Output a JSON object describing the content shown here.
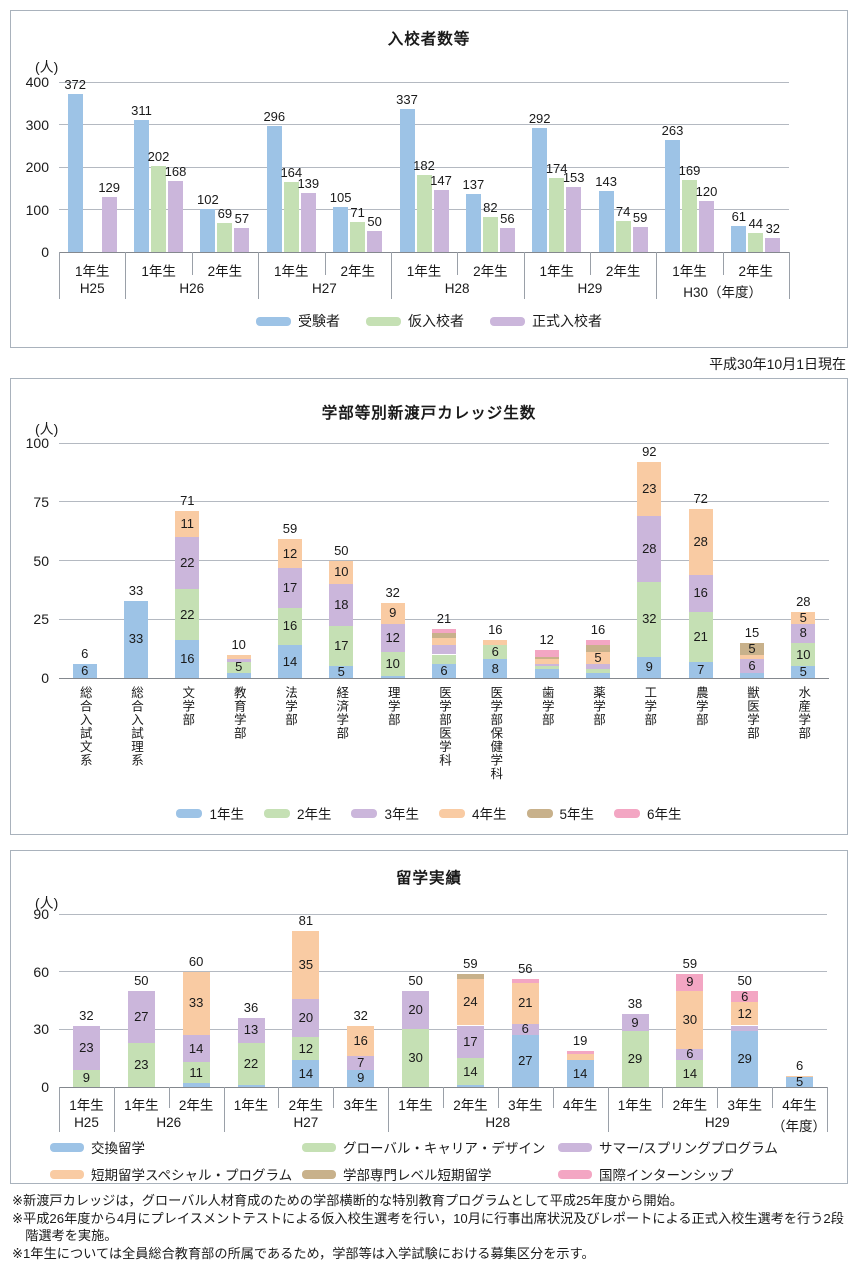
{
  "date_note": "平成30年10月1日現在",
  "footnotes": [
    "※新渡戸カレッジは，グローバル人材育成のための学部横断的な特別教育プログラムとして平成25年度から開始。",
    "※平成26年度から4月にプレイスメントテストによる仮入校生選考を行い，10月に行事出席状況及びレポートによる正式入校生選考を行う2段階選考を実施。",
    "※1年生については全員総合教育部の所属であるため，学部等は入学試験における募集区分を示す。"
  ],
  "chart_data": [
    {
      "type": "bar",
      "title": "入校者数等",
      "unit": "(人)",
      "ylim": [
        0,
        400
      ],
      "yticks": [
        0,
        100,
        200,
        300,
        400
      ],
      "grid": true,
      "legend_position": "bottom",
      "series": [
        {
          "name": "受験者",
          "color": "#9DC3E6"
        },
        {
          "name": "仮入校者",
          "color": "#C5E0B4"
        },
        {
          "name": "正式入校者",
          "color": "#CBB6DB"
        }
      ],
      "groups": [
        {
          "label": "1年生",
          "values": [
            372,
            null,
            129
          ]
        },
        {
          "label": "1年生",
          "values": [
            311,
            202,
            168
          ]
        },
        {
          "label": "2年生",
          "values": [
            102,
            69,
            57
          ]
        },
        {
          "label": "1年生",
          "values": [
            296,
            164,
            139
          ]
        },
        {
          "label": "2年生",
          "values": [
            105,
            71,
            50
          ]
        },
        {
          "label": "1年生",
          "values": [
            337,
            182,
            147
          ]
        },
        {
          "label": "2年生",
          "values": [
            137,
            82,
            56
          ]
        },
        {
          "label": "1年生",
          "values": [
            292,
            174,
            153
          ]
        },
        {
          "label": "2年生",
          "values": [
            143,
            74,
            59
          ]
        },
        {
          "label": "1年生",
          "values": [
            263,
            169,
            120
          ]
        },
        {
          "label": "2年生",
          "values": [
            61,
            44,
            32
          ]
        }
      ],
      "year_groups": [
        {
          "label": "H25",
          "span": 1
        },
        {
          "label": "H26",
          "span": 2
        },
        {
          "label": "H27",
          "span": 2
        },
        {
          "label": "H28",
          "span": 2
        },
        {
          "label": "H29",
          "span": 2
        },
        {
          "label": "H30（年度）",
          "span": 2
        }
      ]
    },
    {
      "type": "stacked-bar",
      "title": "学部等別新渡戸カレッジ生数",
      "unit": "(人)",
      "ylim": [
        0,
        100
      ],
      "yticks": [
        0,
        25,
        50,
        75,
        100
      ],
      "grid": true,
      "legend_position": "bottom",
      "label_min_value": 5,
      "series": [
        {
          "name": "1年生",
          "color": "#9DC3E6"
        },
        {
          "name": "2年生",
          "color": "#C5E0B4"
        },
        {
          "name": "3年生",
          "color": "#CBB6DB"
        },
        {
          "name": "4年生",
          "color": "#F9CBA3"
        },
        {
          "name": "5年生",
          "color": "#C8B18B"
        },
        {
          "name": "6年生",
          "color": "#F3A6C3"
        }
      ],
      "categories": [
        "総合入試文系",
        "総合入試理系",
        "文学部",
        "教育学部",
        "法学部",
        "経済学部",
        "理学部",
        "医学部医学科",
        "医学部保健学科",
        "歯学部",
        "薬学部",
        "工学部",
        "農学部",
        "獣医学部",
        "水産学部"
      ],
      "values": [
        [
          6,
          0,
          0,
          0,
          0,
          0
        ],
        [
          33,
          0,
          0,
          0,
          0,
          0
        ],
        [
          16,
          22,
          22,
          11,
          0,
          0
        ],
        [
          2,
          5,
          1,
          2,
          0,
          0
        ],
        [
          14,
          16,
          17,
          12,
          0,
          0
        ],
        [
          5,
          17,
          18,
          10,
          0,
          0
        ],
        [
          1,
          10,
          12,
          9,
          0,
          0
        ],
        [
          6,
          4,
          4,
          3,
          2,
          2
        ],
        [
          8,
          6,
          0,
          2,
          0,
          0
        ],
        [
          4,
          1,
          1,
          2,
          1,
          3
        ],
        [
          2,
          2,
          2,
          5,
          3,
          2
        ],
        [
          9,
          32,
          28,
          23,
          0,
          0
        ],
        [
          7,
          21,
          16,
          28,
          0,
          0
        ],
        [
          2,
          0,
          6,
          2,
          5,
          0
        ],
        [
          5,
          10,
          8,
          5,
          0,
          0
        ]
      ],
      "totals": [
        6,
        33,
        71,
        10,
        59,
        50,
        32,
        21,
        16,
        12,
        16,
        92,
        72,
        15,
        28
      ]
    },
    {
      "type": "stacked-bar",
      "title": "留学実績",
      "unit": "(人)",
      "ylim": [
        0,
        90
      ],
      "yticks": [
        0,
        30,
        60,
        90
      ],
      "grid": true,
      "legend_position": "bottom",
      "label_min_value": 5,
      "axis_suffix": "（年度）",
      "series": [
        {
          "name": "交換留学",
          "color": "#9DC3E6"
        },
        {
          "name": "グローバル・キャリア・デザイン",
          "color": "#C5E0B4"
        },
        {
          "name": "サマー/スプリングプログラム",
          "color": "#CBB6DB"
        },
        {
          "name": "短期留学スペシャル・プログラム",
          "color": "#F9CBA3"
        },
        {
          "name": "学部専門レベル短期留学",
          "color": "#C8B18B"
        },
        {
          "name": "国際インターンシップ",
          "color": "#F3A6C3"
        }
      ],
      "groups": [
        {
          "label": "1年生",
          "values": [
            0,
            9,
            23,
            0,
            0,
            0
          ],
          "total": 32
        },
        {
          "label": "1年生",
          "values": [
            0,
            23,
            27,
            0,
            0,
            0
          ],
          "total": 50
        },
        {
          "label": "2年生",
          "values": [
            2,
            11,
            14,
            33,
            0,
            0
          ],
          "total": 60
        },
        {
          "label": "1年生",
          "values": [
            1,
            22,
            13,
            0,
            0,
            0
          ],
          "total": 36
        },
        {
          "label": "2年生",
          "values": [
            14,
            12,
            20,
            35,
            0,
            0
          ],
          "total": 81
        },
        {
          "label": "3年生",
          "values": [
            9,
            0,
            7,
            16,
            0,
            0
          ],
          "total": 32
        },
        {
          "label": "1年生",
          "values": [
            0,
            30,
            20,
            0,
            0,
            0
          ],
          "total": 50
        },
        {
          "label": "2年生",
          "values": [
            1,
            14,
            17,
            24,
            3,
            0
          ],
          "total": 59
        },
        {
          "label": "3年生",
          "values": [
            27,
            0,
            6,
            21,
            0,
            2
          ],
          "total": 56
        },
        {
          "label": "4年生",
          "values": [
            14,
            0,
            0,
            3,
            0,
            2
          ],
          "total": 19
        },
        {
          "label": "1年生",
          "values": [
            0,
            29,
            9,
            0,
            0,
            0
          ],
          "total": 38
        },
        {
          "label": "2年生",
          "values": [
            0,
            14,
            6,
            30,
            0,
            9
          ],
          "total": 59
        },
        {
          "label": "3年生",
          "values": [
            29,
            0,
            3,
            12,
            0,
            6
          ],
          "total": 50
        },
        {
          "label": "4年生",
          "values": [
            5,
            0,
            0,
            1,
            0,
            0
          ],
          "total": 6
        }
      ],
      "year_groups": [
        {
          "label": "H25",
          "span": 1
        },
        {
          "label": "H26",
          "span": 2
        },
        {
          "label": "H27",
          "span": 3
        },
        {
          "label": "H28",
          "span": 4
        },
        {
          "label": "H29",
          "span": 4
        }
      ]
    }
  ]
}
